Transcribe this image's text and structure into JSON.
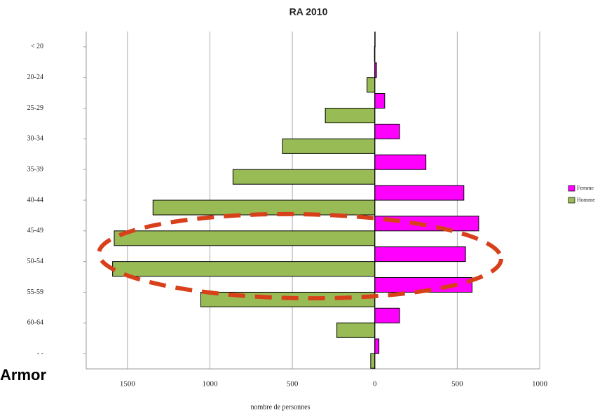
{
  "chart_data": {
    "type": "pyramid",
    "title": "RA 2010",
    "x_label": "nombre de personnes",
    "overlay_text": "Armor",
    "categories": [
      "< 20",
      "20-24",
      "25-29",
      "30-34",
      "35-39",
      "40-44",
      "45-49",
      "50-54",
      "55-59",
      "60-64",
      "- -"
    ],
    "series": [
      {
        "name": "Femme",
        "color": "#ff00ff",
        "values": [
          2,
          10,
          60,
          150,
          310,
          540,
          630,
          550,
          590,
          150,
          25
        ]
      },
      {
        "name": "Homme",
        "color": "#99bb55",
        "values": [
          -2,
          -47,
          -300,
          -560,
          -860,
          -1345,
          -1580,
          -1590,
          -1055,
          -230,
          -25
        ]
      }
    ],
    "xlim": [
      -1750,
      1000
    ],
    "xticks": [
      {
        "value": -1500,
        "label": "1500"
      },
      {
        "value": -1000,
        "label": "1000"
      },
      {
        "value": -500,
        "label": "500"
      },
      0,
      500,
      1000
    ],
    "grid": true,
    "legend": "right"
  }
}
